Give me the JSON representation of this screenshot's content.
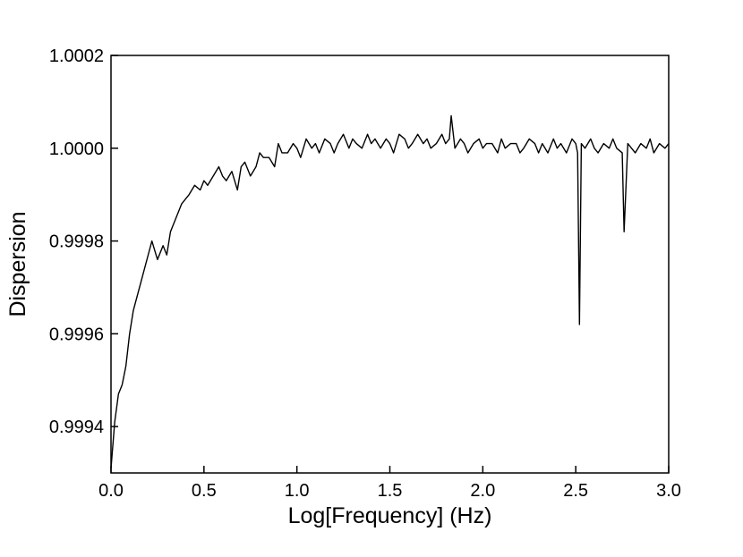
{
  "chart_data": {
    "type": "line",
    "title": "",
    "xlabel": "Log[Frequency] (Hz)",
    "ylabel": "Dispersion",
    "xlim": [
      0.0,
      3.0
    ],
    "ylim": [
      0.9993,
      1.0002
    ],
    "x_ticks": [
      "0.0",
      "0.5",
      "1.0",
      "1.5",
      "2.0",
      "2.5",
      "3.0"
    ],
    "y_ticks": [
      "0.9994",
      "0.9996",
      "0.9998",
      "1.0000",
      "1.0002"
    ],
    "grid": false,
    "legend": "none",
    "line_color": "#000000",
    "series": [
      {
        "x": [
          0.0,
          0.02,
          0.04,
          0.06,
          0.08,
          0.1,
          0.12,
          0.14,
          0.16,
          0.18,
          0.2,
          0.22,
          0.25,
          0.28,
          0.3,
          0.32,
          0.35,
          0.38,
          0.4,
          0.42,
          0.45,
          0.48,
          0.5,
          0.52,
          0.55,
          0.58,
          0.6,
          0.62,
          0.65,
          0.68,
          0.7,
          0.72,
          0.75,
          0.78,
          0.8,
          0.82,
          0.85,
          0.88,
          0.9,
          0.92,
          0.95,
          0.98,
          1.0,
          1.02,
          1.05,
          1.08,
          1.1,
          1.12,
          1.15,
          1.18,
          1.2,
          1.22,
          1.25,
          1.28,
          1.3,
          1.32,
          1.35,
          1.38,
          1.4,
          1.42,
          1.45,
          1.48,
          1.5,
          1.52,
          1.55,
          1.58,
          1.6,
          1.62,
          1.65,
          1.68,
          1.7,
          1.72,
          1.75,
          1.78,
          1.8,
          1.82,
          1.83,
          1.85,
          1.88,
          1.9,
          1.92,
          1.95,
          1.98,
          2.0,
          2.02,
          2.05,
          2.08,
          2.1,
          2.12,
          2.15,
          2.18,
          2.2,
          2.22,
          2.25,
          2.28,
          2.3,
          2.32,
          2.35,
          2.38,
          2.4,
          2.42,
          2.45,
          2.48,
          2.5,
          2.51,
          2.52,
          2.53,
          2.55,
          2.58,
          2.6,
          2.62,
          2.65,
          2.68,
          2.7,
          2.72,
          2.75,
          2.76,
          2.78,
          2.8,
          2.82,
          2.85,
          2.88,
          2.9,
          2.92,
          2.95,
          2.98,
          3.0
        ],
        "y": [
          0.99931,
          0.99941,
          0.99947,
          0.99949,
          0.99953,
          0.9996,
          0.99965,
          0.99968,
          0.99971,
          0.99974,
          0.99977,
          0.9998,
          0.99976,
          0.99979,
          0.99977,
          0.99982,
          0.99985,
          0.99988,
          0.99989,
          0.9999,
          0.99992,
          0.99991,
          0.99993,
          0.99992,
          0.99994,
          0.99996,
          0.99994,
          0.99993,
          0.99995,
          0.99991,
          0.99996,
          0.99997,
          0.99994,
          0.99996,
          0.99999,
          0.99998,
          0.99998,
          0.99996,
          1.00001,
          0.99999,
          0.99999,
          1.00001,
          1.0,
          0.99998,
          1.00002,
          1.0,
          1.00001,
          0.99999,
          1.00002,
          1.00001,
          0.99999,
          1.00001,
          1.00003,
          1.0,
          1.00002,
          1.00001,
          1.0,
          1.00003,
          1.00001,
          1.00002,
          1.0,
          1.00002,
          1.00001,
          0.99999,
          1.00003,
          1.00002,
          1.0,
          1.00001,
          1.00003,
          1.00001,
          1.00002,
          1.0,
          1.00001,
          1.00003,
          1.00001,
          1.00002,
          1.00007,
          1.0,
          1.00002,
          1.00001,
          0.99999,
          1.00001,
          1.00002,
          1.0,
          1.00001,
          1.00001,
          0.99999,
          1.00002,
          1.0,
          1.00001,
          1.00001,
          0.99999,
          1.0,
          1.00002,
          1.00001,
          0.99999,
          1.00001,
          0.99999,
          1.00002,
          1.0,
          1.00001,
          0.99999,
          1.00002,
          1.00001,
          0.99999,
          0.99962,
          1.00001,
          1.0,
          1.00002,
          1.0,
          0.99999,
          1.00001,
          1.0,
          1.00002,
          1.0,
          0.99999,
          0.99982,
          1.00001,
          1.0,
          0.99999,
          1.00001,
          1.0,
          1.00002,
          0.99999,
          1.00001,
          1.0,
          1.00001
        ]
      }
    ]
  }
}
